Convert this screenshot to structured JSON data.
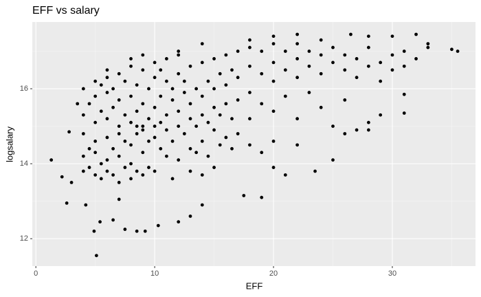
{
  "chart_data": {
    "type": "scatter",
    "title": "EFF vs salary",
    "x_label": "EFF",
    "y_label": "logsalary",
    "x": [
      1.3,
      5.1,
      4.9,
      5.4,
      6.5,
      7.5,
      8.5,
      9.2,
      10.3,
      12,
      13,
      14,
      2.6,
      4.2,
      7,
      19,
      17.5,
      35,
      35.5,
      33,
      32,
      30,
      28,
      26.5,
      22,
      31,
      31,
      29,
      28,
      25,
      23.5,
      27,
      26,
      21,
      20,
      2.2,
      2.8,
      3,
      3.5,
      4,
      5,
      6,
      8,
      9,
      12,
      14,
      18,
      20,
      24,
      4,
      4,
      4,
      4,
      4.5,
      4.5,
      4.5,
      5,
      5,
      5,
      5,
      5,
      5.5,
      5.5,
      5.5,
      5.5,
      6,
      6,
      6,
      6,
      6,
      6,
      6.5,
      6.5,
      6.5,
      6.5,
      7,
      7,
      7,
      7,
      7,
      7,
      7.5,
      7.5,
      7.5,
      7.5,
      8,
      8,
      8,
      8,
      8,
      8,
      8.5,
      8.5,
      8.5,
      8.5,
      8.5,
      9,
      9,
      9,
      9,
      9,
      9,
      9.5,
      9.5,
      9.5,
      9.5,
      10,
      10,
      10,
      10,
      10,
      10,
      10.5,
      10.5,
      10.5,
      10.5,
      11,
      11,
      11,
      11,
      11,
      11.5,
      11.5,
      11.5,
      11.5,
      12,
      12,
      12,
      12,
      12,
      12.5,
      12.5,
      12.5,
      13,
      13,
      13,
      13,
      13,
      13.5,
      13.5,
      13.5,
      14,
      14,
      14,
      14,
      14,
      14.5,
      14.5,
      14.5,
      15,
      15,
      15,
      15,
      15,
      15.5,
      15.5,
      15.5,
      16,
      16,
      16,
      16,
      16.5,
      16.5,
      16.5,
      17,
      17,
      17,
      17,
      18,
      18,
      18,
      18,
      18,
      19,
      19,
      19,
      19,
      20,
      20,
      20,
      20,
      20,
      21,
      21,
      21,
      22,
      22,
      22,
      22,
      22,
      23,
      23,
      23,
      24,
      24,
      24,
      25,
      25,
      25,
      26,
      26,
      26,
      27,
      27,
      28,
      28,
      28,
      29,
      29,
      30,
      30,
      31,
      31,
      32,
      33
    ],
    "values": [
      14.1,
      11.55,
      12.2,
      12.45,
      12.5,
      12.25,
      12.2,
      12.2,
      12.35,
      12.45,
      12.6,
      12.9,
      12.95,
      12.9,
      13.05,
      13.1,
      13.15,
      17.05,
      17.0,
      17.2,
      17.45,
      17.4,
      17.4,
      17.45,
      17.45,
      15.85,
      15.35,
      15.3,
      14.9,
      14.1,
      13.8,
      14.9,
      14.8,
      13.7,
      13.9,
      13.65,
      14.85,
      13.5,
      15.6,
      16.0,
      16.2,
      16.5,
      16.8,
      16.9,
      17.0,
      17.2,
      17.3,
      17.4,
      17.3,
      14.2,
      14.8,
      15.3,
      13.8,
      15.6,
      14.4,
      13.9,
      14.6,
      15.1,
      15.8,
      13.7,
      14.3,
      15.4,
      14.0,
      16.1,
      13.6,
      14.7,
      15.2,
      15.9,
      14.1,
      13.8,
      16.3,
      15.5,
      14.4,
      13.7,
      16.0,
      15.0,
      14.2,
      15.7,
      16.4,
      13.5,
      14.8,
      15.3,
      14.6,
      16.2,
      13.9,
      15.1,
      14.0,
      15.8,
      16.6,
      13.6,
      14.5,
      15.4,
      14.8,
      16.1,
      13.8,
      15.0,
      15.6,
      14.3,
      16.5,
      13.7,
      15.0,
      14.9,
      15.2,
      16.0,
      14.6,
      13.9,
      15.5,
      14.7,
      16.3,
      13.8,
      15.0,
      16.7,
      15.8,
      14.4,
      15.1,
      16.5,
      15.3,
      16.2,
      14.2,
      14.9,
      16.8,
      15.7,
      14.6,
      16.0,
      13.6,
      15.4,
      16.4,
      14.1,
      15.0,
      16.9,
      15.9,
      14.8,
      16.2,
      15.6,
      16.6,
      14.4,
      15.2,
      13.8,
      16.0,
      15.0,
      14.3,
      15.8,
      16.7,
      14.6,
      15.3,
      13.7,
      16.2,
      15.1,
      14.2,
      16.0,
      16.8,
      14.9,
      15.5,
      13.9,
      16.4,
      15.3,
      14.5,
      16.1,
      16.9,
      15.6,
      14.7,
      16.5,
      15.2,
      14.4,
      16.3,
      17.0,
      15.7,
      14.8,
      16.6,
      15.9,
      17.1,
      14.5,
      15.2,
      16.4,
      17.0,
      15.6,
      14.3,
      16.7,
      16.2,
      17.2,
      15.4,
      14.6,
      16.5,
      17.0,
      15.8,
      16.8,
      16.3,
      17.2,
      15.2,
      14.5,
      16.6,
      17.0,
      15.9,
      16.9,
      16.4,
      15.5,
      16.7,
      17.1,
      15.0,
      16.5,
      16.9,
      15.7,
      16.8,
      16.3,
      16.6,
      17.1,
      15.1,
      16.7,
      16.2,
      16.9,
      16.5,
      17.0,
      16.6,
      16.8,
      17.1
    ],
    "color": "#000000",
    "xlim": [
      -0.3,
      37.0
    ],
    "ylim": [
      11.27,
      17.78
    ],
    "xticks": [
      0,
      10,
      20,
      30
    ],
    "yticks": [
      12,
      14,
      16
    ],
    "grid": true
  }
}
